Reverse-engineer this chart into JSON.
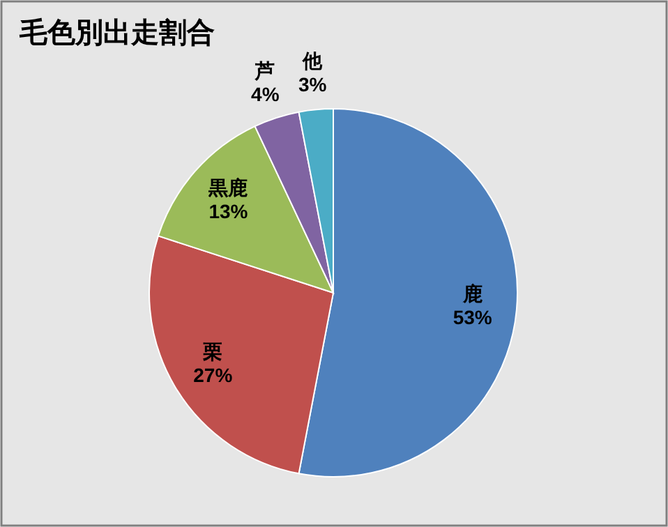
{
  "chart_data": {
    "type": "pie",
    "title": "毛色別出走割合",
    "categories": [
      "鹿",
      "栗",
      "黒鹿",
      "芦",
      "他"
    ],
    "values": [
      53,
      27,
      13,
      4,
      3
    ],
    "value_labels": [
      "53%",
      "27%",
      "13%",
      "4%",
      "3%"
    ],
    "colors": [
      "#4f81bd",
      "#c0504d",
      "#9bbb59",
      "#8064a2",
      "#4bacc6"
    ]
  }
}
